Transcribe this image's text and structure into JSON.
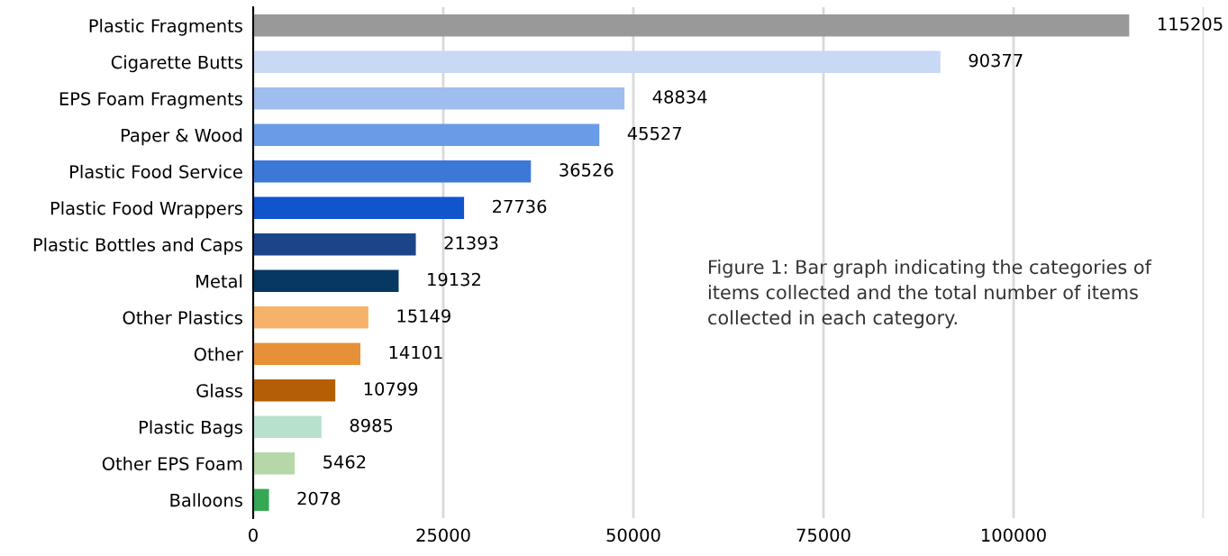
{
  "chart_data": {
    "type": "bar",
    "orientation": "horizontal",
    "categories": [
      "Plastic Fragments",
      "Cigarette Butts",
      "EPS Foam Fragments",
      "Paper & Wood",
      "Plastic Food Service",
      "Plastic Food Wrappers",
      "Plastic Bottles and Caps",
      "Metal",
      "Other Plastics",
      "Other",
      "Glass",
      "Plastic Bags",
      "Other EPS Foam",
      "Balloons"
    ],
    "values": [
      115205,
      90377,
      48834,
      45527,
      36526,
      27736,
      21393,
      19132,
      15149,
      14101,
      10799,
      8985,
      5462,
      2078
    ],
    "colors": [
      "#999999",
      "#c8d8f5",
      "#a0bdef",
      "#6a9be6",
      "#3c78d8",
      "#1155cc",
      "#1c4587",
      "#073763",
      "#f6b26b",
      "#e69138",
      "#b45f06",
      "#b7e1cd",
      "#b6d7a8",
      "#34a853"
    ],
    "xlim": [
      0,
      125000
    ],
    "xticks": [
      0,
      25000,
      50000,
      75000,
      100000,
      {
        "value": 125000,
        "label": null
      }
    ],
    "grid": "x",
    "data_labels": true,
    "annotations": [
      "Figure 1: Bar graph indicating the categories of items collected and the total number of items collected in each category."
    ]
  }
}
